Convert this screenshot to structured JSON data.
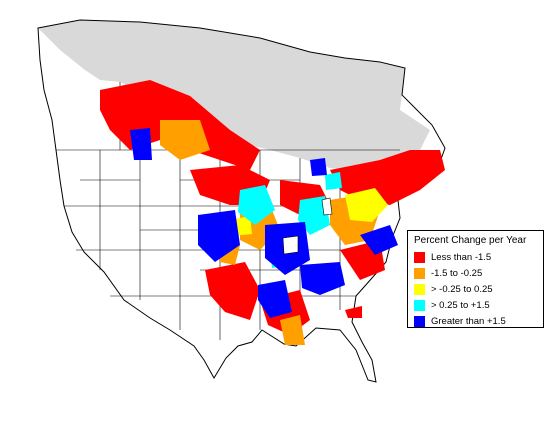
{
  "legend": {
    "title": "Percent Change per Year",
    "entries": [
      {
        "label": "Less than -1.5",
        "color": "#ff0000"
      },
      {
        "label": "-1.5 to -0.25",
        "color": "#ff9f00"
      },
      {
        "label": "> -0.25 to 0.25",
        "color": "#ffff00"
      },
      {
        "label": "> 0.25 to +1.5",
        "color": "#00ffff"
      },
      {
        "label": "Greater than +1.5",
        "color": "#0000ff"
      }
    ]
  },
  "colors": {
    "outside_range": "#d9d9d9",
    "boundary": "#000000",
    "background": "#ffffff"
  }
}
